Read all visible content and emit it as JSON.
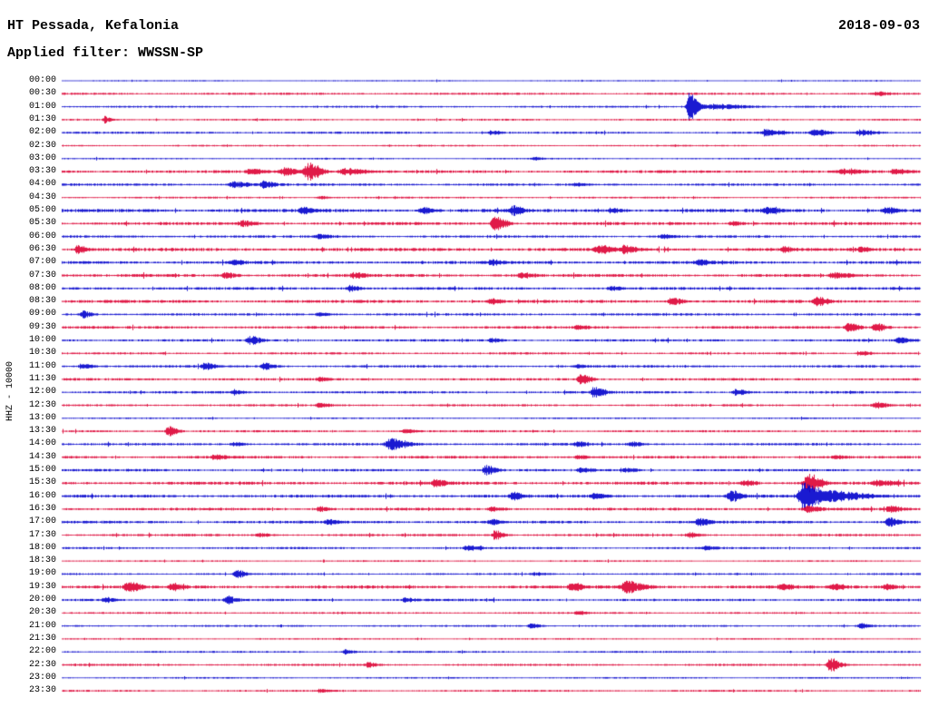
{
  "header": {
    "station": "HT Pessada, Kefalonia",
    "date": "2018-09-03",
    "filter_label": "Applied filter: WWSSN-SP"
  },
  "chart_data": {
    "type": "line",
    "subtype": "helicorder-seismogram",
    "title": "HT Pessada, Kefalonia",
    "date": "2018-09-03",
    "filter": "WWSSN-SP",
    "scale_label": "HHZ - 10000",
    "layout": {
      "minutes_per_line": 30,
      "lines": 48,
      "start_time": "00:00",
      "end_time": "23:30",
      "grid": false,
      "legend": "none"
    },
    "colors": {
      "hour": "#0000cc",
      "half_hour": "#dd0033",
      "text": "#000000",
      "background": "#ffffff"
    },
    "rows": [
      {
        "t": "00:00",
        "n": 0.5,
        "ev": []
      },
      {
        "t": "00:30",
        "n": 0.8,
        "ev": [
          [
            0.95,
            2.0,
            6
          ]
        ]
      },
      {
        "t": "01:00",
        "n": 0.7,
        "ev": [
          [
            0.731,
            15,
            4
          ],
          [
            0.76,
            3,
            14
          ]
        ]
      },
      {
        "t": "01:30",
        "n": 0.7,
        "ev": [
          [
            0.05,
            3.5,
            3
          ]
        ]
      },
      {
        "t": "02:00",
        "n": 0.8,
        "ev": [
          [
            0.5,
            2,
            5
          ],
          [
            0.82,
            3,
            7
          ],
          [
            0.875,
            3.5,
            6
          ],
          [
            0.93,
            2.8,
            7
          ]
        ]
      },
      {
        "t": "02:30",
        "n": 0.6,
        "ev": []
      },
      {
        "t": "03:00",
        "n": 0.6,
        "ev": [
          [
            0.55,
            1.5,
            4
          ]
        ]
      },
      {
        "t": "03:30",
        "n": 1.0,
        "ev": [
          [
            0.22,
            3,
            6
          ],
          [
            0.26,
            4,
            9
          ],
          [
            0.287,
            9,
            6
          ],
          [
            0.33,
            3.5,
            9
          ],
          [
            0.91,
            2.5,
            8
          ],
          [
            0.97,
            2.5,
            6
          ]
        ]
      },
      {
        "t": "04:00",
        "n": 0.9,
        "ev": [
          [
            0.2,
            3,
            8
          ],
          [
            0.235,
            4,
            5
          ],
          [
            0.6,
            1.5,
            5
          ]
        ]
      },
      {
        "t": "04:30",
        "n": 0.7,
        "ev": [
          [
            0.3,
            1.5,
            5
          ]
        ]
      },
      {
        "t": "05:00",
        "n": 1.2,
        "ev": [
          [
            0.28,
            3,
            6
          ],
          [
            0.42,
            3,
            5
          ],
          [
            0.525,
            5,
            5
          ],
          [
            0.64,
            2.5,
            5
          ],
          [
            0.82,
            3,
            6
          ],
          [
            0.96,
            3.5,
            5
          ]
        ]
      },
      {
        "t": "05:30",
        "n": 1.1,
        "ev": [
          [
            0.21,
            3,
            6
          ],
          [
            0.504,
            9,
            5
          ],
          [
            0.78,
            2.5,
            5
          ]
        ]
      },
      {
        "t": "06:00",
        "n": 0.9,
        "ev": [
          [
            0.3,
            2,
            6
          ],
          [
            0.7,
            2,
            6
          ]
        ]
      },
      {
        "t": "06:30",
        "n": 1.2,
        "ev": [
          [
            0.018,
            4.5,
            4
          ],
          [
            0.625,
            4.5,
            6
          ],
          [
            0.655,
            4,
            5
          ],
          [
            0.84,
            3,
            4
          ],
          [
            0.93,
            2.5,
            4
          ]
        ]
      },
      {
        "t": "07:00",
        "n": 1.1,
        "ev": [
          [
            0.2,
            2,
            5
          ],
          [
            0.5,
            2.5,
            5
          ],
          [
            0.74,
            3,
            5
          ]
        ]
      },
      {
        "t": "07:30",
        "n": 1.1,
        "ev": [
          [
            0.19,
            3,
            5
          ],
          [
            0.34,
            2.5,
            5
          ],
          [
            0.535,
            3,
            5
          ],
          [
            0.9,
            2.5,
            8
          ]
        ]
      },
      {
        "t": "08:00",
        "n": 1.0,
        "ev": [
          [
            0.335,
            3,
            5
          ],
          [
            0.64,
            2,
            5
          ]
        ]
      },
      {
        "t": "08:30",
        "n": 1.1,
        "ev": [
          [
            0.5,
            2.5,
            5
          ],
          [
            0.71,
            4,
            5
          ],
          [
            0.879,
            5,
            5
          ]
        ]
      },
      {
        "t": "09:00",
        "n": 0.9,
        "ev": [
          [
            0.025,
            3.5,
            4
          ],
          [
            0.3,
            2,
            5
          ]
        ]
      },
      {
        "t": "09:30",
        "n": 1.0,
        "ev": [
          [
            0.6,
            2,
            5
          ],
          [
            0.916,
            5,
            5
          ],
          [
            0.948,
            4.5,
            5
          ]
        ]
      },
      {
        "t": "10:00",
        "n": 0.9,
        "ev": [
          [
            0.219,
            4.5,
            5
          ],
          [
            0.5,
            2,
            5
          ],
          [
            0.975,
            3.5,
            5
          ]
        ]
      },
      {
        "t": "10:30",
        "n": 0.8,
        "ev": [
          [
            0.93,
            2.5,
            5
          ]
        ]
      },
      {
        "t": "11:00",
        "n": 0.9,
        "ev": [
          [
            0.023,
            3,
            5
          ],
          [
            0.166,
            3.5,
            5
          ],
          [
            0.235,
            3.5,
            5
          ],
          [
            0.6,
            1.5,
            5
          ]
        ]
      },
      {
        "t": "11:30",
        "n": 0.9,
        "ev": [
          [
            0.3,
            2,
            5
          ],
          [
            0.604,
            5,
            5
          ]
        ]
      },
      {
        "t": "12:00",
        "n": 0.9,
        "ev": [
          [
            0.2,
            2,
            5
          ],
          [
            0.62,
            6,
            5
          ],
          [
            0.785,
            3,
            5
          ]
        ]
      },
      {
        "t": "12:30",
        "n": 0.8,
        "ev": [
          [
            0.3,
            2,
            5
          ],
          [
            0.948,
            3.5,
            5
          ]
        ]
      },
      {
        "t": "13:00",
        "n": 0.6,
        "ev": []
      },
      {
        "t": "13:30",
        "n": 0.8,
        "ev": [
          [
            0.124,
            5.5,
            4
          ],
          [
            0.4,
            2,
            5
          ]
        ]
      },
      {
        "t": "14:00",
        "n": 0.9,
        "ev": [
          [
            0.2,
            2,
            5
          ],
          [
            0.383,
            6,
            8
          ],
          [
            0.6,
            2.5,
            5
          ],
          [
            0.662,
            2.5,
            5
          ]
        ]
      },
      {
        "t": "14:30",
        "n": 1.0,
        "ev": [
          [
            0.177,
            2.5,
            5
          ],
          [
            0.6,
            2,
            5
          ],
          [
            0.9,
            2,
            5
          ]
        ]
      },
      {
        "t": "15:00",
        "n": 0.9,
        "ev": [
          [
            0.494,
            5,
            5
          ],
          [
            0.604,
            2.5,
            5
          ],
          [
            0.657,
            2.5,
            5
          ]
        ]
      },
      {
        "t": "15:30",
        "n": 1.1,
        "ev": [
          [
            0.435,
            3.5,
            5
          ],
          [
            0.795,
            3.5,
            5
          ],
          [
            0.869,
            11,
            6
          ],
          [
            0.95,
            3,
            8
          ]
        ]
      },
      {
        "t": "16:00",
        "n": 1.1,
        "ev": [
          [
            0.525,
            4,
            5
          ],
          [
            0.62,
            3,
            5
          ],
          [
            0.779,
            5.5,
            5
          ],
          [
            0.864,
            15,
            8
          ],
          [
            0.9,
            5,
            16
          ]
        ]
      },
      {
        "t": "16:30",
        "n": 1.0,
        "ev": [
          [
            0.3,
            2.5,
            5
          ],
          [
            0.5,
            2,
            5
          ],
          [
            0.869,
            3.5,
            6
          ],
          [
            0.964,
            3.5,
            5
          ]
        ]
      },
      {
        "t": "17:00",
        "n": 1.0,
        "ev": [
          [
            0.31,
            2.5,
            5
          ],
          [
            0.5,
            2.5,
            5
          ],
          [
            0.742,
            4,
            5
          ],
          [
            0.963,
            4.5,
            5
          ]
        ]
      },
      {
        "t": "17:30",
        "n": 0.9,
        "ev": [
          [
            0.23,
            2,
            5
          ],
          [
            0.504,
            5.5,
            4
          ],
          [
            0.73,
            2.5,
            5
          ]
        ]
      },
      {
        "t": "18:00",
        "n": 0.8,
        "ev": [
          [
            0.472,
            3,
            5
          ],
          [
            0.75,
            2,
            5
          ]
        ]
      },
      {
        "t": "18:30",
        "n": 0.6,
        "ev": []
      },
      {
        "t": "19:00",
        "n": 0.7,
        "ev": [
          [
            0.203,
            4.5,
            4
          ],
          [
            0.55,
            1.5,
            5
          ]
        ]
      },
      {
        "t": "19:30",
        "n": 1.2,
        "ev": [
          [
            0.076,
            5.5,
            5
          ],
          [
            0.128,
            4.5,
            5
          ],
          [
            0.594,
            4.5,
            5
          ],
          [
            0.657,
            6,
            8
          ],
          [
            0.838,
            3,
            5
          ],
          [
            0.9,
            3,
            5
          ],
          [
            0.96,
            2.5,
            5
          ]
        ]
      },
      {
        "t": "20:00",
        "n": 0.9,
        "ev": [
          [
            0.05,
            2.5,
            5
          ],
          [
            0.192,
            4,
            4
          ],
          [
            0.4,
            2,
            5
          ]
        ]
      },
      {
        "t": "20:30",
        "n": 0.7,
        "ev": [
          [
            0.6,
            1.5,
            5
          ]
        ]
      },
      {
        "t": "21:00",
        "n": 0.7,
        "ev": [
          [
            0.546,
            3,
            4
          ],
          [
            0.93,
            2.5,
            4
          ]
        ]
      },
      {
        "t": "21:30",
        "n": 0.6,
        "ev": []
      },
      {
        "t": "22:00",
        "n": 0.7,
        "ev": [
          [
            0.33,
            2.5,
            4
          ]
        ]
      },
      {
        "t": "22:30",
        "n": 0.8,
        "ev": [
          [
            0.356,
            2.5,
            4
          ],
          [
            0.895,
            7.5,
            5
          ]
        ]
      },
      {
        "t": "23:00",
        "n": 0.6,
        "ev": []
      },
      {
        "t": "23:30",
        "n": 0.7,
        "ev": [
          [
            0.3,
            1.5,
            5
          ]
        ]
      }
    ]
  }
}
